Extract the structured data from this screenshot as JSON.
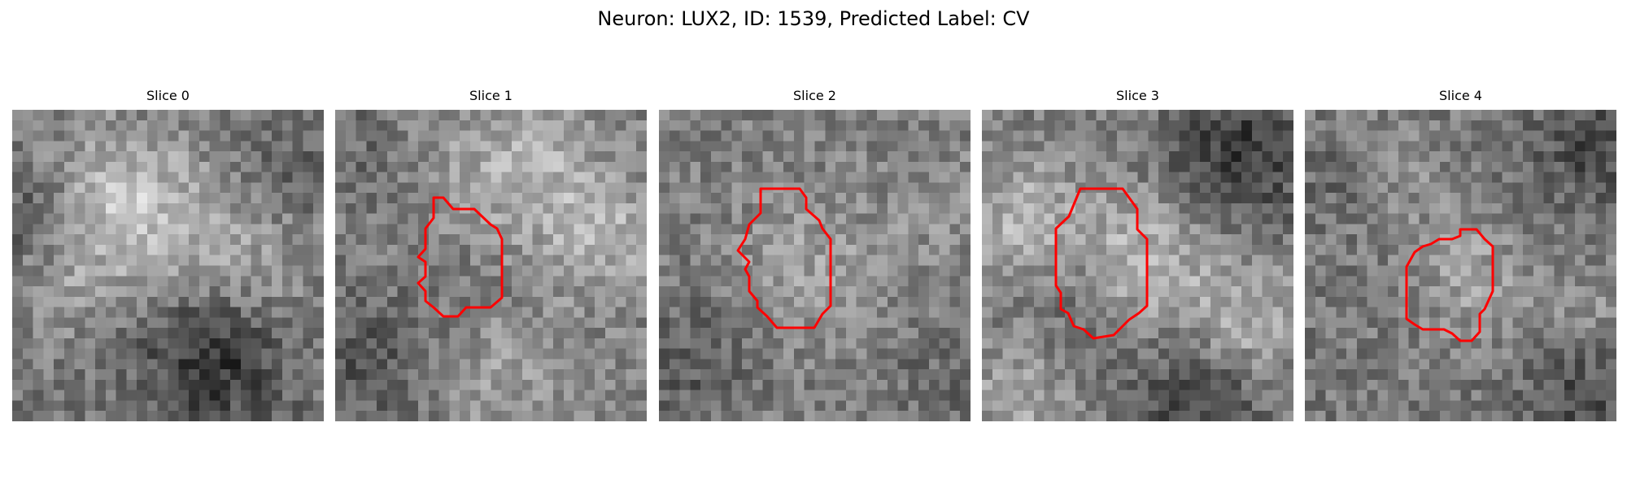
{
  "figure": {
    "title": "Neuron: LUX2, ID: 1539, Predicted Label: CV",
    "colormap": "gray",
    "contour_color": "#ff0000"
  },
  "panels": [
    {
      "title": "Slice 0",
      "has_contour": false
    },
    {
      "title": "Slice 1",
      "has_contour": true
    },
    {
      "title": "Slice 2",
      "has_contour": true
    },
    {
      "title": "Slice 3",
      "has_contour": true
    },
    {
      "title": "Slice 4",
      "has_contour": true
    }
  ]
}
